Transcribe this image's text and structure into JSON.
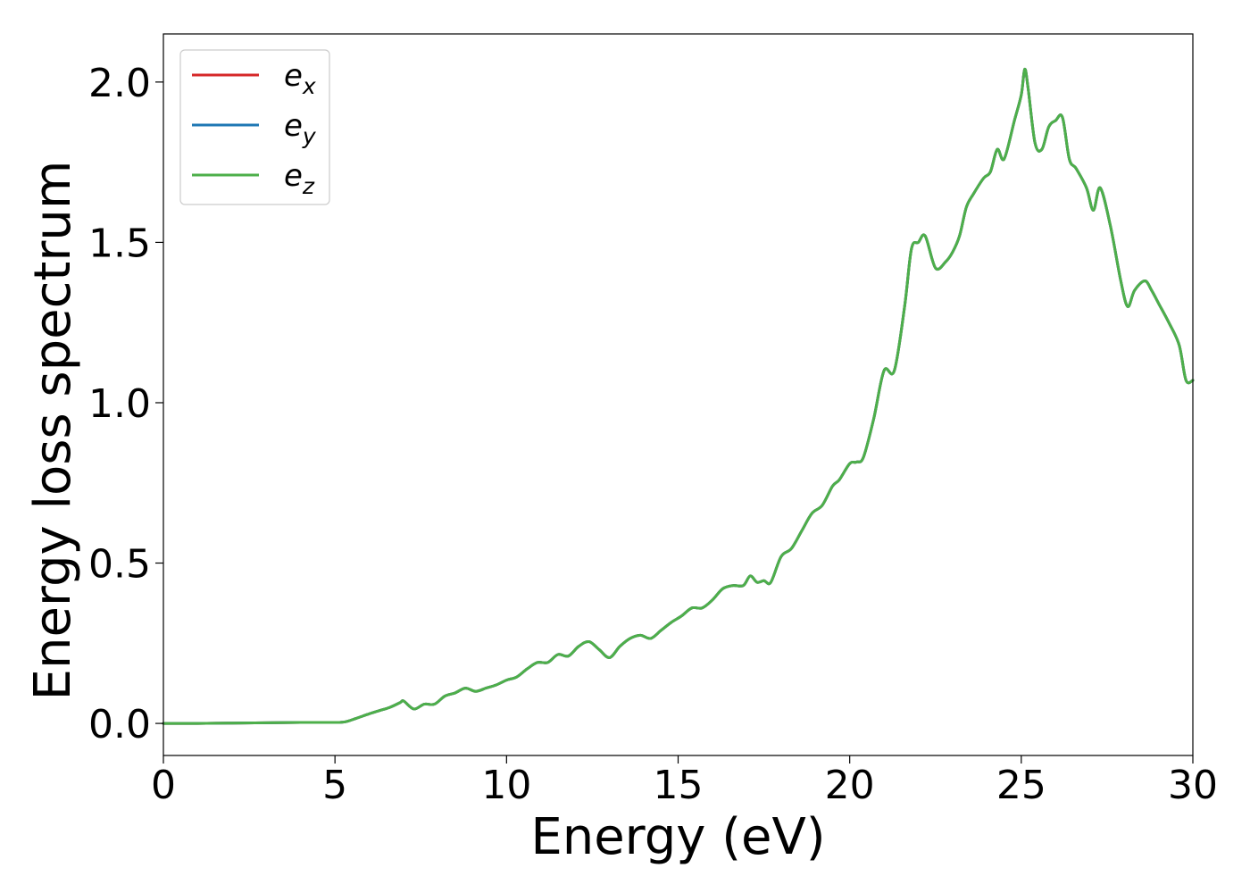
{
  "chart_data": {
    "type": "line",
    "xlabel": "Energy (eV)",
    "ylabel": "Energy loss spectrum",
    "xlim": [
      0,
      30
    ],
    "ylim": [
      -0.1,
      2.15
    ],
    "xticks": [
      0,
      5,
      10,
      15,
      20,
      25,
      30
    ],
    "xtick_labels": [
      "0",
      "5",
      "10",
      "15",
      "20",
      "25",
      "30"
    ],
    "yticks": [
      0.0,
      0.5,
      1.0,
      1.5,
      2.0
    ],
    "ytick_labels": [
      "0.0",
      "0.5",
      "1.0",
      "1.5",
      "2.0"
    ],
    "grid": false,
    "legend_position": "top-left",
    "x": [
      0,
      1,
      2,
      3,
      4,
      5,
      5.3,
      5.6,
      6,
      6.3,
      6.6,
      6.9,
      7.0,
      7.3,
      7.6,
      7.9,
      8.2,
      8.5,
      8.8,
      9.1,
      9.4,
      9.7,
      10.0,
      10.3,
      10.6,
      10.9,
      11.2,
      11.5,
      11.8,
      12.1,
      12.4,
      12.7,
      13.0,
      13.3,
      13.6,
      13.9,
      14.2,
      14.5,
      14.8,
      15.1,
      15.4,
      15.7,
      16.0,
      16.3,
      16.6,
      16.9,
      17.1,
      17.3,
      17.5,
      17.7,
      18.0,
      18.3,
      18.6,
      18.9,
      19.2,
      19.5,
      19.7,
      20.0,
      20.2,
      20.4,
      20.7,
      21.0,
      21.3,
      21.6,
      21.8,
      22.0,
      22.2,
      22.5,
      22.8,
      23.0,
      23.2,
      23.4,
      23.6,
      23.9,
      24.1,
      24.3,
      24.5,
      24.8,
      25.0,
      25.1,
      25.2,
      25.4,
      25.6,
      25.8,
      26.0,
      26.2,
      26.4,
      26.6,
      26.9,
      27.1,
      27.3,
      27.6,
      27.9,
      28.1,
      28.3,
      28.6,
      28.8,
      29.0,
      29.3,
      29.6,
      29.8,
      30.0
    ],
    "series": [
      {
        "name": "e_x",
        "color": "#d62728",
        "values": [
          0,
          0,
          0.001,
          0.002,
          0.003,
          0.003,
          0.005,
          0.015,
          0.03,
          0.04,
          0.05,
          0.065,
          0.07,
          0.045,
          0.06,
          0.06,
          0.085,
          0.095,
          0.11,
          0.1,
          0.11,
          0.12,
          0.135,
          0.145,
          0.17,
          0.19,
          0.19,
          0.215,
          0.21,
          0.24,
          0.255,
          0.23,
          0.205,
          0.24,
          0.265,
          0.275,
          0.265,
          0.29,
          0.315,
          0.335,
          0.36,
          0.36,
          0.385,
          0.42,
          0.43,
          0.43,
          0.46,
          0.44,
          0.445,
          0.44,
          0.52,
          0.545,
          0.6,
          0.655,
          0.68,
          0.74,
          0.76,
          0.81,
          0.815,
          0.83,
          0.95,
          1.1,
          1.1,
          1.3,
          1.48,
          1.5,
          1.52,
          1.42,
          1.44,
          1.47,
          1.52,
          1.61,
          1.65,
          1.7,
          1.72,
          1.79,
          1.76,
          1.88,
          1.96,
          2.04,
          1.98,
          1.81,
          1.79,
          1.86,
          1.88,
          1.89,
          1.76,
          1.73,
          1.67,
          1.6,
          1.67,
          1.55,
          1.38,
          1.3,
          1.35,
          1.38,
          1.35,
          1.31,
          1.25,
          1.18,
          1.07,
          1.07
        ]
      },
      {
        "name": "e_y",
        "color": "#1f77b4",
        "values": [
          0,
          0,
          0.001,
          0.002,
          0.003,
          0.003,
          0.005,
          0.015,
          0.03,
          0.04,
          0.05,
          0.065,
          0.07,
          0.045,
          0.06,
          0.06,
          0.085,
          0.095,
          0.11,
          0.1,
          0.11,
          0.12,
          0.135,
          0.145,
          0.17,
          0.19,
          0.19,
          0.215,
          0.21,
          0.24,
          0.255,
          0.23,
          0.205,
          0.24,
          0.265,
          0.275,
          0.265,
          0.29,
          0.315,
          0.335,
          0.36,
          0.36,
          0.385,
          0.42,
          0.43,
          0.43,
          0.46,
          0.44,
          0.445,
          0.44,
          0.52,
          0.545,
          0.6,
          0.655,
          0.68,
          0.74,
          0.76,
          0.81,
          0.815,
          0.83,
          0.95,
          1.1,
          1.1,
          1.3,
          1.48,
          1.5,
          1.52,
          1.42,
          1.44,
          1.47,
          1.52,
          1.61,
          1.65,
          1.7,
          1.72,
          1.79,
          1.76,
          1.88,
          1.96,
          2.04,
          1.98,
          1.81,
          1.79,
          1.86,
          1.88,
          1.89,
          1.76,
          1.73,
          1.67,
          1.6,
          1.67,
          1.55,
          1.38,
          1.3,
          1.35,
          1.38,
          1.35,
          1.31,
          1.25,
          1.18,
          1.07,
          1.07
        ]
      },
      {
        "name": "e_z",
        "color": "#4daf4a",
        "values": [
          0,
          0,
          0.001,
          0.002,
          0.003,
          0.003,
          0.005,
          0.015,
          0.03,
          0.04,
          0.05,
          0.065,
          0.07,
          0.045,
          0.06,
          0.06,
          0.085,
          0.095,
          0.11,
          0.1,
          0.11,
          0.12,
          0.135,
          0.145,
          0.17,
          0.19,
          0.19,
          0.215,
          0.21,
          0.24,
          0.255,
          0.23,
          0.205,
          0.24,
          0.265,
          0.275,
          0.265,
          0.29,
          0.315,
          0.335,
          0.36,
          0.36,
          0.385,
          0.42,
          0.43,
          0.43,
          0.46,
          0.44,
          0.445,
          0.44,
          0.52,
          0.545,
          0.6,
          0.655,
          0.68,
          0.74,
          0.76,
          0.81,
          0.815,
          0.83,
          0.95,
          1.1,
          1.1,
          1.3,
          1.48,
          1.5,
          1.52,
          1.42,
          1.44,
          1.47,
          1.52,
          1.61,
          1.65,
          1.7,
          1.72,
          1.79,
          1.76,
          1.88,
          1.96,
          2.04,
          1.98,
          1.81,
          1.79,
          1.86,
          1.88,
          1.89,
          1.76,
          1.73,
          1.67,
          1.6,
          1.67,
          1.55,
          1.38,
          1.3,
          1.35,
          1.38,
          1.35,
          1.31,
          1.25,
          1.18,
          1.07,
          1.07
        ]
      }
    ],
    "legend": [
      {
        "base": "e",
        "sub": "x",
        "color": "#d62728"
      },
      {
        "base": "e",
        "sub": "y",
        "color": "#1f77b4"
      },
      {
        "base": "e",
        "sub": "z",
        "color": "#4daf4a"
      }
    ]
  }
}
